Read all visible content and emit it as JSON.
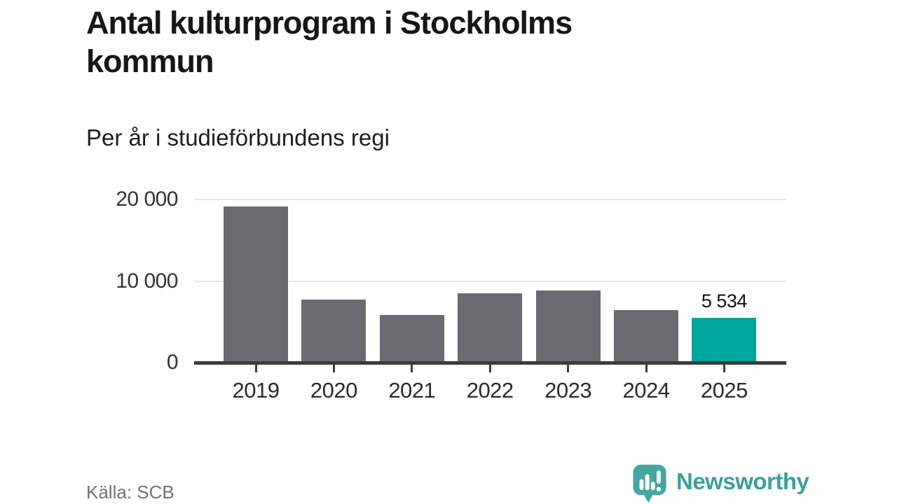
{
  "chart_data": {
    "type": "bar",
    "title": "Antal kulturprogram i Stockholms kommun",
    "subtitle": "Per år i studieförbundens regi",
    "categories": [
      "2019",
      "2020",
      "2021",
      "2022",
      "2023",
      "2024",
      "2025"
    ],
    "values": [
      19100,
      7700,
      5800,
      8500,
      8800,
      6450,
      5534
    ],
    "highlight_category": "2025",
    "annotations": [
      {
        "category": "2025",
        "text": "5 534"
      }
    ],
    "ylim": [
      0,
      20000
    ],
    "yticks": [
      {
        "value": 0,
        "label": "0"
      },
      {
        "value": 10000,
        "label": "10 000"
      },
      {
        "value": 20000,
        "label": "20 000"
      }
    ],
    "xlabel": "",
    "ylabel": "",
    "grid": "horizontal",
    "legend": "none",
    "source": "Källa: SCB",
    "colors": {
      "bar": "#6b6a70",
      "highlight": "#00a69c",
      "axis": "#3b3b3b",
      "gridline": "#e4e4e4"
    }
  },
  "footer": {
    "brand": "Newsworthy",
    "brand_color": "#3ba09a",
    "logo_color": "#46a59f"
  }
}
